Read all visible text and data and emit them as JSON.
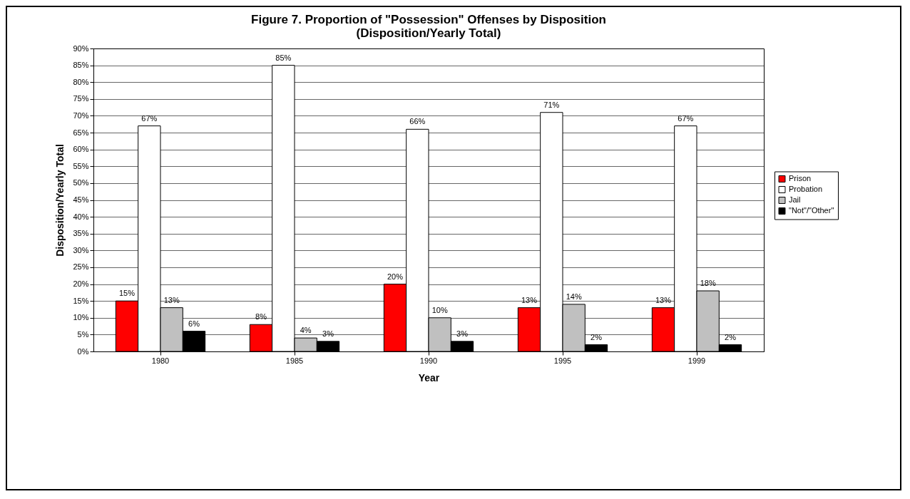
{
  "chart_data": {
    "type": "bar",
    "title": "Figure 7.  Proportion of \"Possession\" Offenses by Disposition",
    "subtitle": "(Disposition/Yearly Total)",
    "xlabel": "Year",
    "ylabel": "Disposition/Yearly Total",
    "categories": [
      "1980",
      "1985",
      "1990",
      "1995",
      "1999"
    ],
    "series": [
      {
        "name": "Prison",
        "color": "#ff0000",
        "values": [
          15,
          8,
          20,
          13,
          13
        ],
        "value_labels": [
          "15%",
          "8%",
          "20%",
          "13%",
          "13%"
        ]
      },
      {
        "name": "Probation",
        "color": "#ffffff",
        "values": [
          67,
          85,
          66,
          71,
          67
        ],
        "value_labels": [
          "67%",
          "85%",
          "66%",
          "71%",
          "67%"
        ]
      },
      {
        "name": "Jail",
        "color": "#c0c0c0",
        "values": [
          13,
          4,
          10,
          14,
          18
        ],
        "value_labels": [
          "13%",
          "4%",
          "10%",
          "14%",
          "18%"
        ]
      },
      {
        "name": "\"Not\"/\"Other\"",
        "color": "#000000",
        "values": [
          6,
          3,
          3,
          2,
          2
        ],
        "value_labels": [
          "6%",
          "3%",
          "3%",
          "2%",
          "2%"
        ]
      }
    ],
    "ylim": [
      0,
      90
    ],
    "yticks": [
      {
        "value": 0,
        "label": "0%"
      },
      {
        "value": 5,
        "label": "5%"
      },
      {
        "value": 10,
        "label": "10%"
      },
      {
        "value": 15,
        "label": "15%"
      },
      {
        "value": 20,
        "label": "20%"
      },
      {
        "value": 25,
        "label": "25%"
      },
      {
        "value": 30,
        "label": "30%"
      },
      {
        "value": 35,
        "label": "35%"
      },
      {
        "value": 40,
        "label": "40%"
      },
      {
        "value": 45,
        "label": "45%"
      },
      {
        "value": 50,
        "label": "50%"
      },
      {
        "value": 55,
        "label": "55%"
      },
      {
        "value": 60,
        "label": "60%"
      },
      {
        "value": 65,
        "label": "65%"
      },
      {
        "value": 70,
        "label": "70%"
      },
      {
        "value": 75,
        "label": "75%"
      },
      {
        "value": 80,
        "label": "80%"
      },
      {
        "value": 85,
        "label": "85%"
      },
      {
        "value": 90,
        "label": "90%"
      }
    ],
    "grid": "y",
    "legend": "right"
  }
}
